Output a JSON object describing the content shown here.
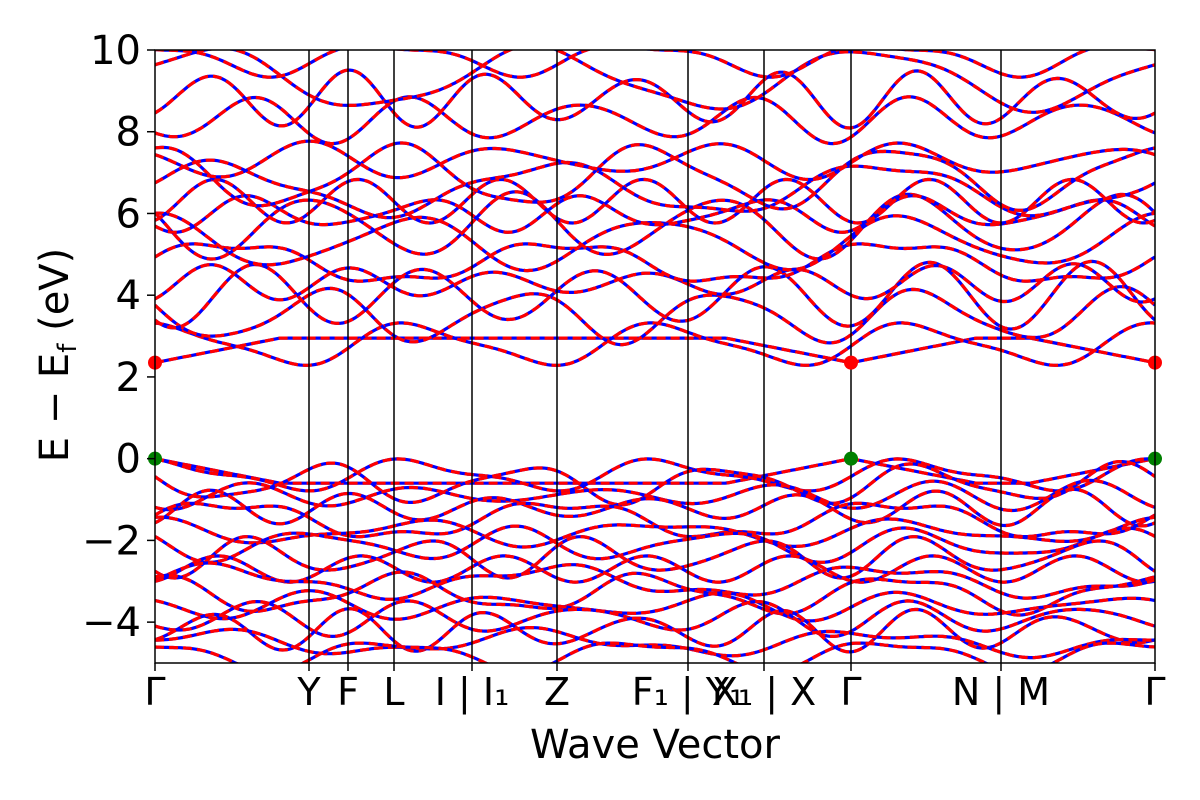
{
  "chart_data": {
    "type": "line",
    "title": "",
    "xlabel": "Wave Vector",
    "ylabel": "E − E",
    "ylabel_sub": "f",
    "ylabel_unit": " (eV)",
    "ylim": [
      -5,
      10
    ],
    "yticks": [
      -4,
      -2,
      0,
      2,
      4,
      6,
      8,
      10
    ],
    "ytick_labels": [
      "−4",
      "−2",
      "0",
      "2",
      "4",
      "6",
      "8",
      "10"
    ],
    "xlim": [
      0,
      1
    ],
    "kpoints": [
      {
        "pos": 0.0,
        "label": "Γ"
      },
      {
        "pos": 0.154,
        "label": "Y"
      },
      {
        "pos": 0.193,
        "label": "F"
      },
      {
        "pos": 0.239,
        "label": "L"
      },
      {
        "pos": 0.317,
        "label": "I | I₁"
      },
      {
        "pos": 0.402,
        "label": "Z"
      },
      {
        "pos": 0.533,
        "label": "F₁ | Y₁"
      },
      {
        "pos": 0.609,
        "label": "X₁ | X"
      },
      {
        "pos": 0.696,
        "label": "Γ"
      },
      {
        "pos": 0.846,
        "label": "N | M"
      },
      {
        "pos": 1.0,
        "label": "Γ"
      }
    ],
    "band_colors": {
      "primary": "#ff0000",
      "secondary": "#0000ff"
    },
    "conduction_band_levels": [
      2.35,
      2.8,
      3.5,
      4.0,
      4.3,
      4.8,
      5.3,
      5.7,
      6.0,
      6.3,
      6.6,
      6.9,
      7.3,
      8.3,
      8.8,
      9.3,
      9.8
    ],
    "valence_band_levels": [
      0.0,
      -0.4,
      -0.6,
      -0.9,
      -1.2,
      -1.5,
      -1.8,
      -2.1,
      -2.4,
      -2.7,
      -3.0,
      -3.3,
      -3.6,
      -3.9,
      -4.2,
      -4.5,
      -4.8
    ],
    "special_points": [
      {
        "x": 0.0,
        "y": 2.35,
        "color": "#ff0000",
        "kind": "cbm"
      },
      {
        "x": 0.696,
        "y": 2.35,
        "color": "#ff0000",
        "kind": "cbm"
      },
      {
        "x": 1.0,
        "y": 2.35,
        "color": "#ff0000",
        "kind": "cbm"
      },
      {
        "x": 0.0,
        "y": 0.0,
        "color": "#008000",
        "kind": "vbm"
      },
      {
        "x": 0.696,
        "y": 0.0,
        "color": "#008000",
        "kind": "vbm"
      },
      {
        "x": 1.0,
        "y": 0.0,
        "color": "#008000",
        "kind": "vbm"
      }
    ]
  }
}
